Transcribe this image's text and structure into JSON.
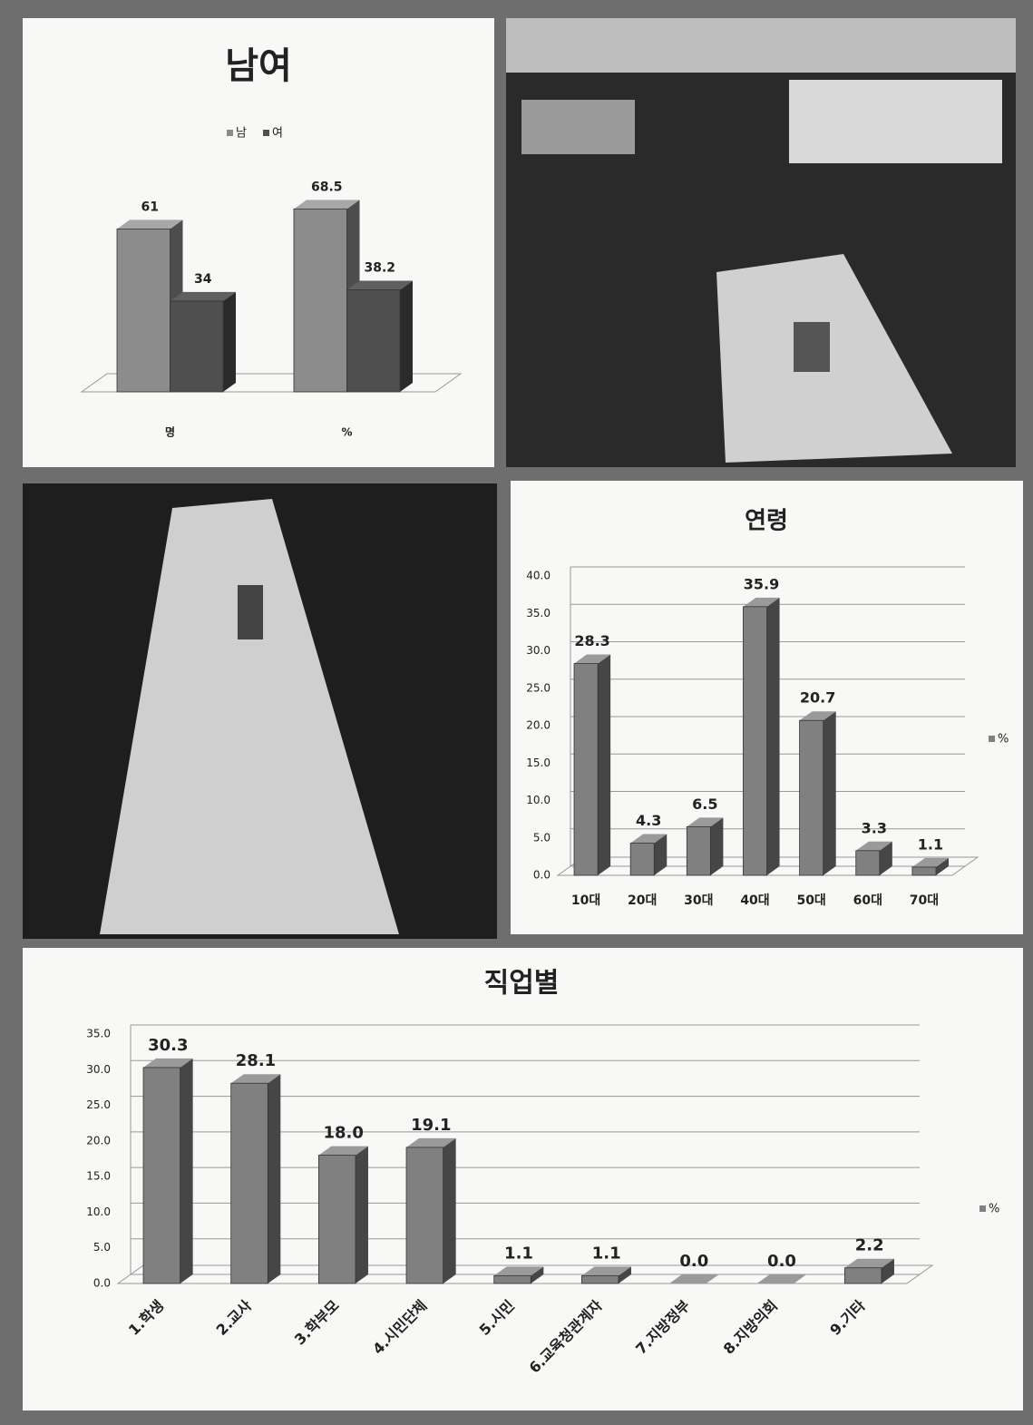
{
  "chart_data": [
    {
      "type": "bar",
      "title": "남여",
      "legend": "top",
      "categories": [
        "명",
        "%"
      ],
      "series": [
        {
          "name": "남",
          "color": "#8c8c8c",
          "values": [
            61,
            68.5
          ]
        },
        {
          "name": "여",
          "color": "#4f4f4f",
          "values": [
            34,
            38.2
          ]
        }
      ]
    },
    {
      "type": "bar",
      "title": "연령",
      "legend": "right",
      "grid": true,
      "categories": [
        "10대",
        "20대",
        "30대",
        "40대",
        "50대",
        "60대",
        "70대"
      ],
      "series": [
        {
          "name": "%",
          "color": "#808080",
          "values": [
            28.3,
            4.3,
            6.5,
            35.9,
            20.7,
            3.3,
            1.1
          ]
        }
      ],
      "ylim": [
        0,
        40
      ],
      "yticks": [
        {
          "value": 0,
          "label": "0.0"
        },
        {
          "value": 5,
          "label": "5.0"
        },
        {
          "value": 10,
          "label": "10.0"
        },
        {
          "value": 15,
          "label": "15.0"
        },
        {
          "value": 20,
          "label": "20.0"
        },
        {
          "value": 25,
          "label": "25.0"
        },
        {
          "value": 30,
          "label": "30.0"
        },
        {
          "value": 35,
          "label": "35.0"
        },
        {
          "value": 40,
          "label": "40.0"
        }
      ]
    },
    {
      "type": "bar",
      "title": "직업별",
      "legend": "right",
      "grid": true,
      "categories": [
        "1.학생",
        "2.교사",
        "3.학부모",
        "4.시민단체",
        "5.시민",
        "6.교육청관계자",
        "7.지방정부",
        "8.지방의회",
        "9.기타"
      ],
      "series": [
        {
          "name": "%",
          "color": "#808080",
          "values": [
            30.3,
            28.1,
            18.0,
            19.1,
            1.1,
            1.1,
            0.0,
            0.0,
            2.2
          ],
          "value_labels": [
            "30.3",
            "28.1",
            "18.0",
            "19.1",
            "1.1",
            "1.1",
            "0.0",
            "0.0",
            "2.2"
          ]
        }
      ],
      "ylim": [
        0,
        35
      ],
      "yticks": [
        {
          "value": 0,
          "label": "0.0"
        },
        {
          "value": 5,
          "label": "5.0"
        },
        {
          "value": 10,
          "label": "10.0"
        },
        {
          "value": 15,
          "label": "15.0"
        },
        {
          "value": 20,
          "label": "20.0"
        },
        {
          "value": 25,
          "label": "25.0"
        },
        {
          "value": 30,
          "label": "30.0"
        },
        {
          "value": 35,
          "label": "35.0"
        }
      ]
    }
  ]
}
